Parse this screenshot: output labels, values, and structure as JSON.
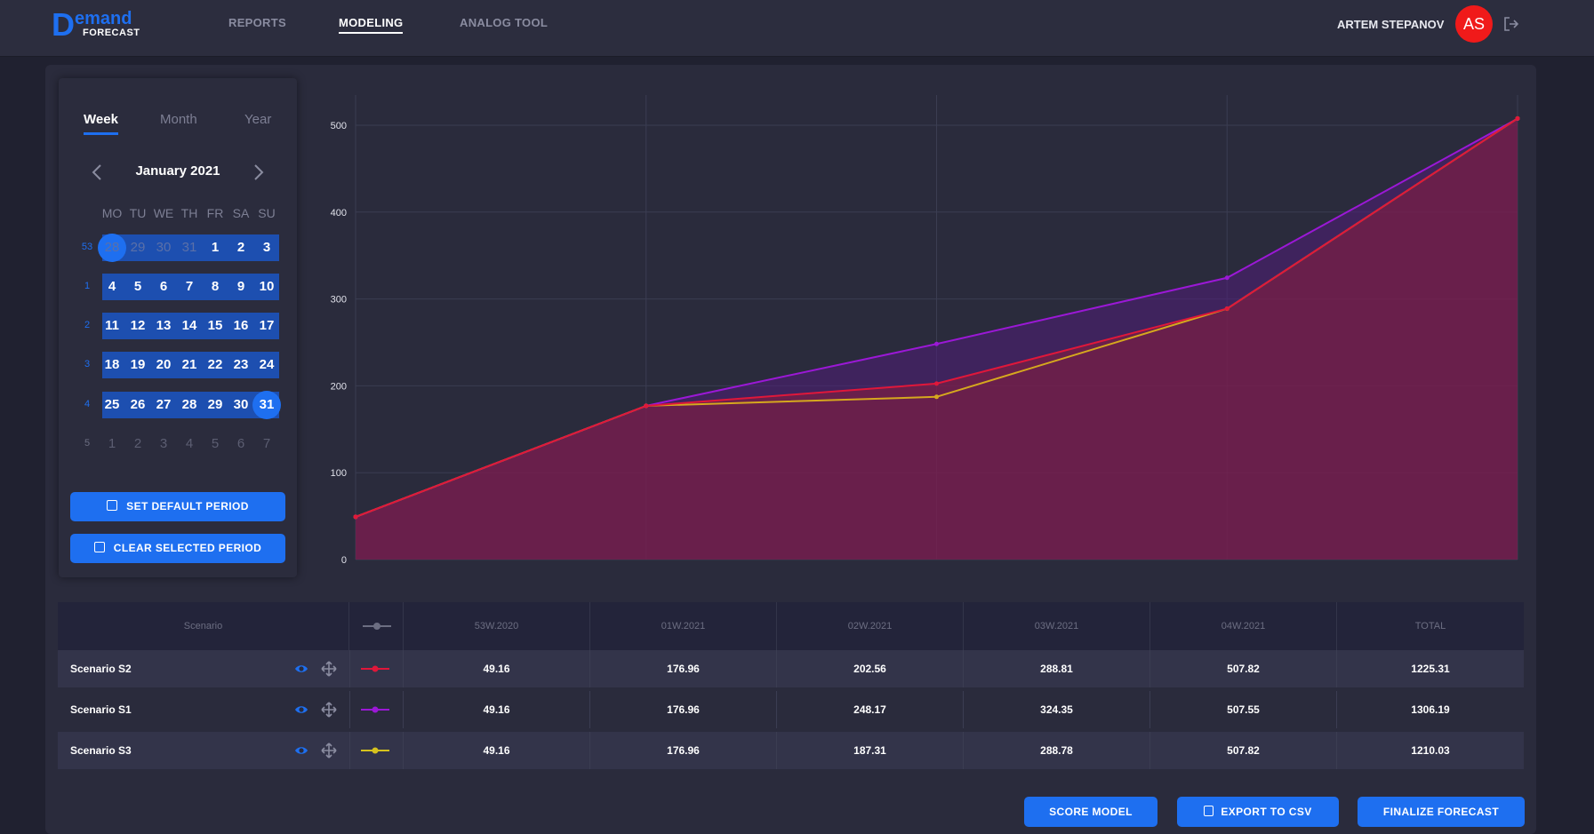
{
  "header": {
    "logo_letter": "D",
    "logo_top": "emand",
    "logo_bottom": "FORECAST",
    "nav": [
      {
        "label": "REPORTS",
        "active": false
      },
      {
        "label": "MODELING",
        "active": true
      },
      {
        "label": "ANALOG TOOL",
        "active": false
      }
    ],
    "user_name": "ARTEM STEPANOV",
    "avatar_initials": "AS"
  },
  "calendar": {
    "tabs": [
      "Week",
      "Month",
      "Year"
    ],
    "active_tab": "Week",
    "month_title": "January 2021",
    "weekdays": [
      "MO",
      "TU",
      "WE",
      "TH",
      "FR",
      "SA",
      "SU"
    ],
    "weeks": [
      {
        "week": "53",
        "days": [
          "28",
          "29",
          "30",
          "31",
          "1",
          "2",
          "3"
        ]
      },
      {
        "week": "1",
        "days": [
          "4",
          "5",
          "6",
          "7",
          "8",
          "9",
          "10"
        ]
      },
      {
        "week": "2",
        "days": [
          "11",
          "12",
          "13",
          "14",
          "15",
          "16",
          "17"
        ]
      },
      {
        "week": "3",
        "days": [
          "18",
          "19",
          "20",
          "21",
          "22",
          "23",
          "24"
        ]
      },
      {
        "week": "4",
        "days": [
          "25",
          "26",
          "27",
          "28",
          "29",
          "30",
          "31"
        ]
      },
      {
        "week": "5",
        "days": [
          "1",
          "2",
          "3",
          "4",
          "5",
          "6",
          "7"
        ]
      }
    ],
    "range_start": "28",
    "range_end": "31",
    "set_default_label": "SET DEFAULT PERIOD",
    "clear_label": "CLEAR SELECTED PERIOD"
  },
  "chart_data": {
    "type": "area",
    "categories": [
      "53W.2020",
      "01W.2021",
      "02W.2021",
      "03W.2021",
      "04W.2021"
    ],
    "ylim": [
      0,
      500
    ],
    "yticks": [
      0,
      100,
      200,
      300,
      400,
      500
    ],
    "grid": true,
    "series": [
      {
        "name": "Scenario S2",
        "values": [
          49.16,
          176.96,
          202.56,
          288.81,
          507.82
        ],
        "color": "#e0173a"
      },
      {
        "name": "Scenario S1",
        "values": [
          49.16,
          176.96,
          248.17,
          324.35,
          507.55
        ],
        "color": "#9b18d6"
      },
      {
        "name": "Scenario S3",
        "values": [
          49.16,
          176.96,
          187.31,
          288.78,
          507.82
        ],
        "color": "#d6a81e"
      }
    ]
  },
  "table": {
    "headers": {
      "scenario": "Scenario",
      "periods": [
        "53W.2020",
        "01W.2021",
        "02W.2021",
        "03W.2021",
        "04W.2021"
      ],
      "total": "TOTAL"
    },
    "rows": [
      {
        "name": "Scenario S2",
        "values": [
          "49.16",
          "176.96",
          "202.56",
          "288.81",
          "507.82"
        ],
        "total": "1225.31",
        "color": "#e0173a"
      },
      {
        "name": "Scenario S1",
        "values": [
          "49.16",
          "176.96",
          "248.17",
          "324.35",
          "507.55"
        ],
        "total": "1306.19",
        "color": "#9b18d6"
      },
      {
        "name": "Scenario S3",
        "values": [
          "49.16",
          "176.96",
          "187.31",
          "288.78",
          "507.82"
        ],
        "total": "1210.03",
        "color": "#d6c21e"
      }
    ]
  },
  "actions": {
    "score_model": "SCORE MODEL",
    "export_csv": "EXPORT TO CSV",
    "finalize": "FINALIZE FORECAST"
  },
  "colors": {
    "accent": "#1e6ff0",
    "avatar": "#f01a1a"
  }
}
